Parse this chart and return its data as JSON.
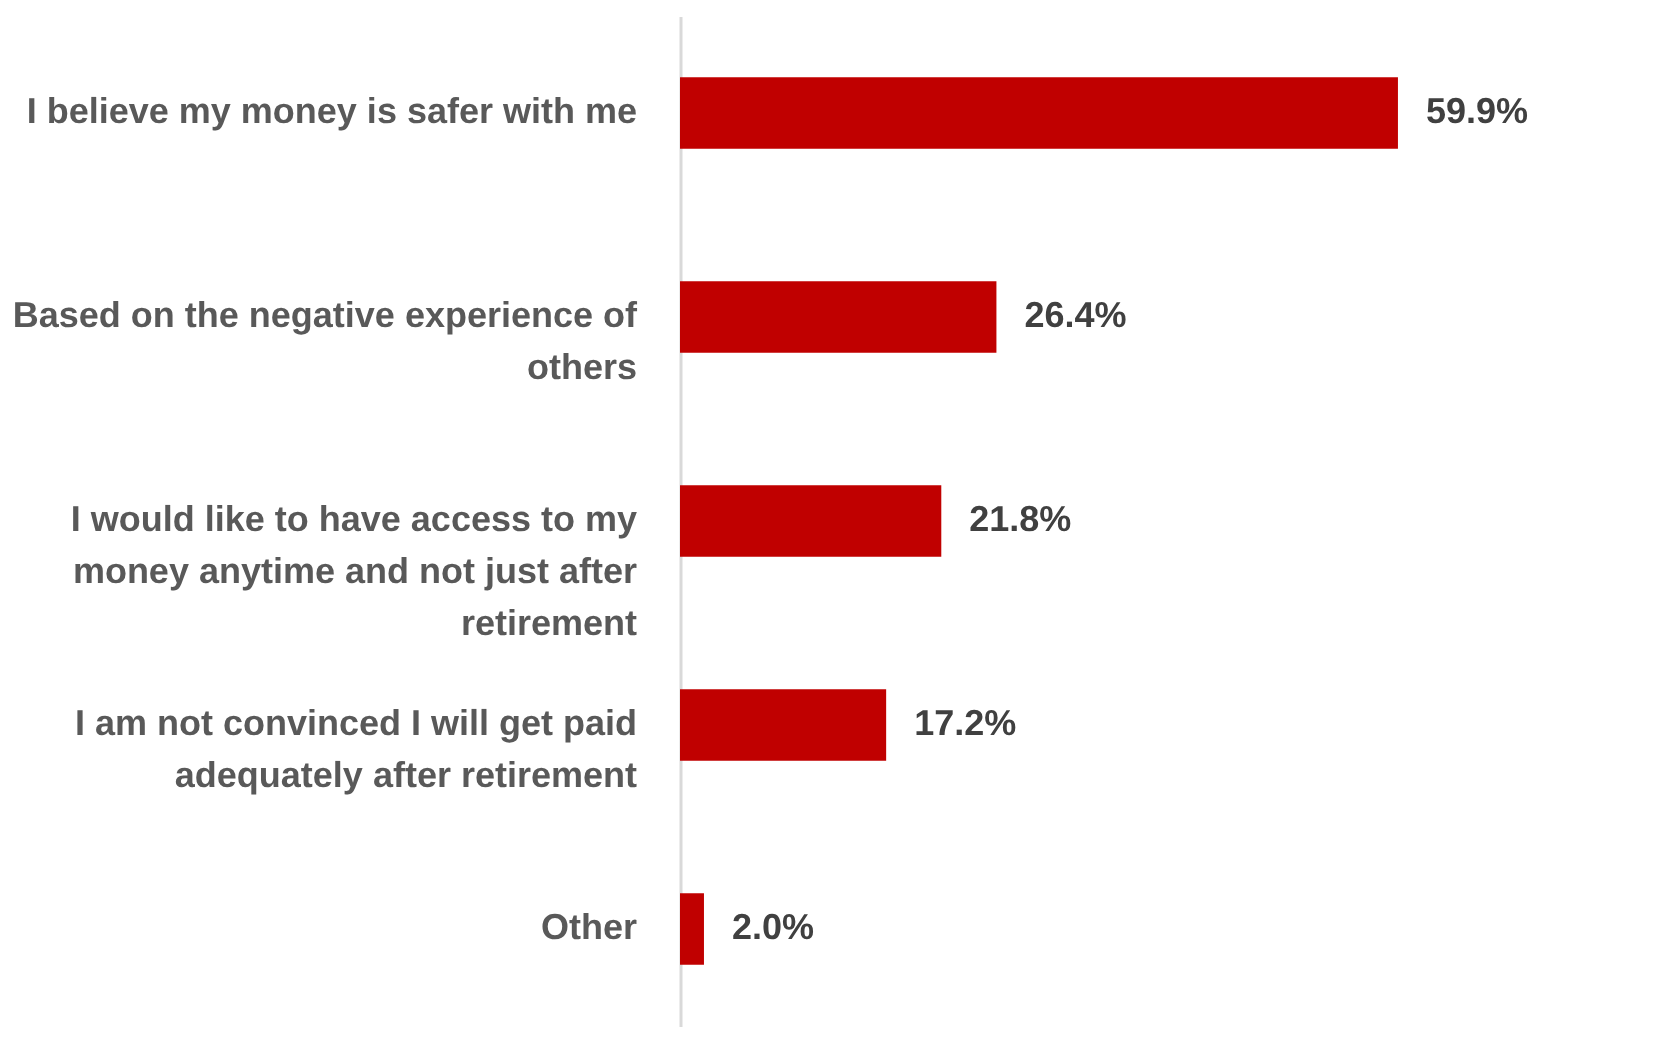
{
  "chart_data": {
    "type": "bar",
    "orientation": "horizontal",
    "categories": [
      "I believe my money is safer with me",
      "Based on the negative experience of others",
      "I would like to have access to my money anytime and not just after retirement",
      "I am not convinced I will get paid adequately after retirement",
      "Other"
    ],
    "values": [
      59.9,
      26.4,
      21.8,
      17.2,
      2.0
    ],
    "value_labels": [
      "59.9%",
      "26.4%",
      "21.8%",
      "17.2%",
      "2.0%"
    ],
    "color": "#c00000",
    "tick_labels": "y"
  }
}
